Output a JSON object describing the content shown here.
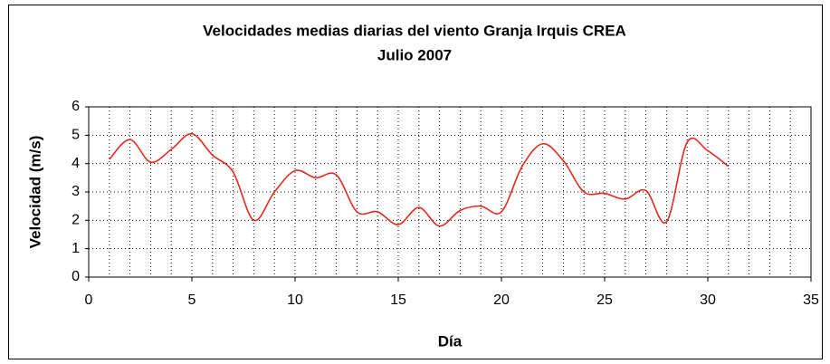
{
  "chart_data": {
    "type": "line",
    "title": "Velocidades medias diarias del viento Granja Irquis CREA",
    "subtitle": "Julio 2007",
    "xlabel": "Día",
    "ylabel": "Velocidad (m/s)",
    "x": [
      1,
      2,
      3,
      4,
      5,
      6,
      7,
      8,
      9,
      10,
      11,
      12,
      13,
      14,
      15,
      16,
      17,
      18,
      19,
      20,
      21,
      22,
      23,
      24,
      25,
      26,
      27,
      28,
      29,
      30,
      31
    ],
    "series": [
      {
        "name": "Velocidad",
        "color": "#e8281e",
        "values": [
          4.15,
          4.85,
          4.05,
          4.5,
          5.05,
          4.3,
          3.7,
          2.0,
          3.0,
          3.75,
          3.5,
          3.6,
          2.3,
          2.3,
          1.85,
          2.45,
          1.8,
          2.35,
          2.5,
          2.3,
          3.9,
          4.7,
          4.1,
          3.0,
          2.95,
          2.75,
          3.05,
          1.95,
          4.75,
          4.45,
          3.9
        ]
      }
    ],
    "xlim": [
      0,
      35
    ],
    "xticks": [
      0,
      5,
      10,
      15,
      20,
      25,
      30,
      35
    ],
    "xminorticks": [
      1,
      2,
      3,
      4,
      6,
      7,
      8,
      9,
      11,
      12,
      13,
      14,
      16,
      17,
      18,
      19,
      21,
      22,
      23,
      24,
      26,
      27,
      28,
      29,
      31,
      32,
      33,
      34
    ],
    "ylim": [
      0,
      6
    ],
    "yticks": [
      0,
      1,
      2,
      3,
      4,
      5,
      6
    ],
    "grid": true,
    "smooth": true
  }
}
